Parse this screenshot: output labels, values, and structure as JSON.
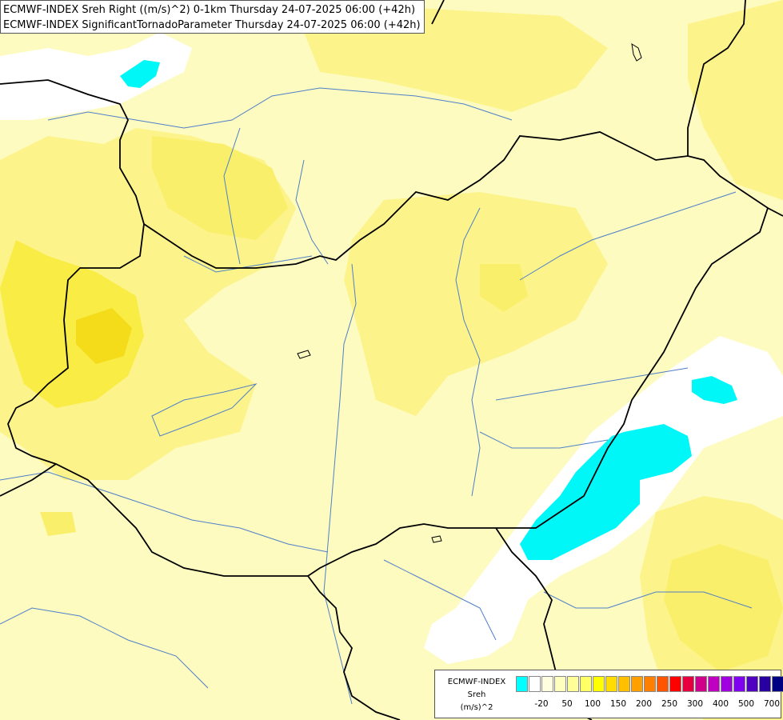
{
  "titles": {
    "line1": "ECMWF-INDEX Sreh Right ((m/s)^2) 0-1km Thursday 24-07-2025 06:00 (+42h)",
    "line2": "ECMWF-INDEX SignificantTornadoParameter Thursday 24-07-2025 06:00 (+42h)"
  },
  "legend": {
    "source": "ECMWF-INDEX",
    "variable": "Sreh",
    "unit": "(m/s)^2",
    "colors": [
      "#00ffff",
      "#ffffff",
      "#ffffe0",
      "#ffffc0",
      "#ffff99",
      "#ffff66",
      "#ffff00",
      "#ffdd00",
      "#ffc000",
      "#ffa000",
      "#ff8000",
      "#ff5500",
      "#ff0000",
      "#e60040",
      "#d0008a",
      "#c000c0",
      "#a000e0",
      "#8000f0",
      "#5000c0",
      "#2800a0",
      "#000080"
    ],
    "ticks": [
      {
        "label": "-20",
        "index": 1
      },
      {
        "label": "50",
        "index": 3
      },
      {
        "label": "100",
        "index": 5
      },
      {
        "label": "150",
        "index": 7
      },
      {
        "label": "200",
        "index": 9
      },
      {
        "label": "250",
        "index": 11
      },
      {
        "label": "300",
        "index": 13
      },
      {
        "label": "400",
        "index": 15
      },
      {
        "label": "500",
        "index": 17
      },
      {
        "label": "700",
        "index": 19
      }
    ]
  }
}
